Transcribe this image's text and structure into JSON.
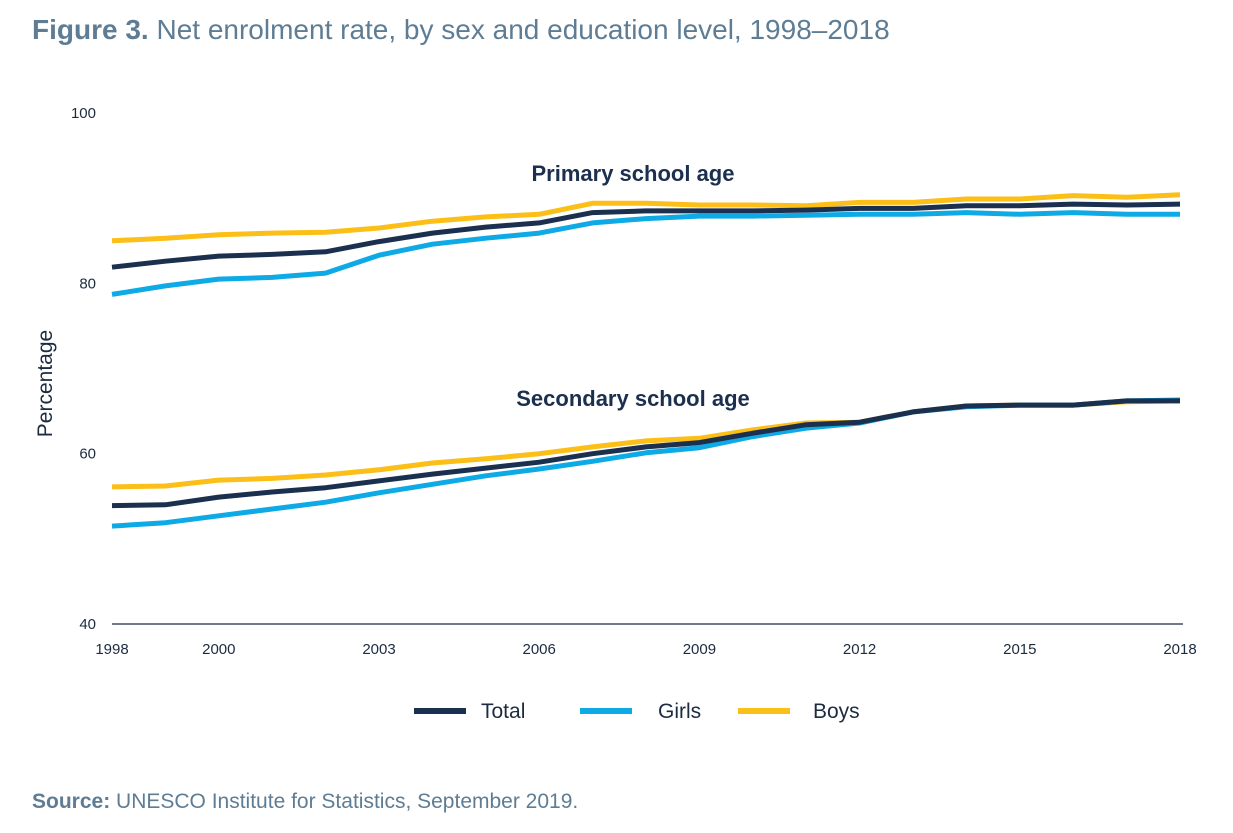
{
  "title": {
    "label": "Figure 3.",
    "text": "Net enrolment rate, by sex and education level, 1998–2018"
  },
  "source": {
    "label": "Source:",
    "text": "UNESCO Institute for Statistics, September 2019."
  },
  "colors": {
    "Total": "#1b2f4e",
    "Girls": "#0eaae6",
    "Boys": "#fbbf17",
    "text": "#5e7d94"
  },
  "chart_data": {
    "type": "line",
    "ylabel": "Percentage",
    "xlabel": "",
    "ylim": [
      40,
      100
    ],
    "yticks": [
      40,
      60,
      80,
      100
    ],
    "xlim": [
      1998,
      2018
    ],
    "xticks": [
      1998,
      2000,
      2003,
      2006,
      2009,
      2012,
      2015,
      2018
    ],
    "grid": false,
    "legend": "bottom",
    "legend_entries": [
      "Total",
      "Girls",
      "Boys"
    ],
    "x": [
      1998,
      1999,
      2000,
      2001,
      2002,
      2003,
      2004,
      2005,
      2006,
      2007,
      2008,
      2009,
      2010,
      2011,
      2012,
      2013,
      2014,
      2015,
      2016,
      2017,
      2018
    ],
    "groups": [
      {
        "annotation": "Primary school age",
        "series": [
          {
            "name": "Boys",
            "values": [
              85.0,
              85.3,
              85.7,
              85.9,
              86.0,
              86.5,
              87.3,
              87.8,
              88.1,
              89.4,
              89.4,
              89.2,
              89.2,
              89.1,
              89.5,
              89.5,
              89.9,
              89.9,
              90.3,
              90.1,
              90.4
            ]
          },
          {
            "name": "Girls",
            "values": [
              78.7,
              79.7,
              80.5,
              80.7,
              81.2,
              83.3,
              84.6,
              85.3,
              85.9,
              87.1,
              87.6,
              87.9,
              87.9,
              88.0,
              88.1,
              88.1,
              88.3,
              88.1,
              88.3,
              88.1,
              88.1
            ]
          },
          {
            "name": "Total",
            "values": [
              81.9,
              82.6,
              83.2,
              83.4,
              83.7,
              84.9,
              85.9,
              86.6,
              87.1,
              88.3,
              88.5,
              88.5,
              88.5,
              88.6,
              88.8,
              88.8,
              89.1,
              89.1,
              89.3,
              89.2,
              89.3
            ]
          }
        ]
      },
      {
        "annotation": "Secondary school age",
        "series": [
          {
            "name": "Boys",
            "values": [
              56.1,
              56.2,
              56.9,
              57.1,
              57.5,
              58.1,
              58.9,
              59.4,
              60.0,
              60.8,
              61.5,
              61.8,
              62.8,
              63.6,
              63.7,
              64.9,
              65.6,
              65.7,
              65.7,
              66.1,
              66.2
            ]
          },
          {
            "name": "Girls",
            "values": [
              51.5,
              51.9,
              52.7,
              53.5,
              54.3,
              55.4,
              56.4,
              57.4,
              58.2,
              59.1,
              60.1,
              60.7,
              62.0,
              63.0,
              63.6,
              64.9,
              65.5,
              65.7,
              65.7,
              66.2,
              66.3
            ]
          },
          {
            "name": "Total",
            "values": [
              53.9,
              54.0,
              54.9,
              55.5,
              56.0,
              56.8,
              57.6,
              58.3,
              59.0,
              60.0,
              60.8,
              61.3,
              62.4,
              63.4,
              63.7,
              64.9,
              65.6,
              65.7,
              65.7,
              66.2,
              66.2
            ]
          }
        ]
      }
    ]
  }
}
